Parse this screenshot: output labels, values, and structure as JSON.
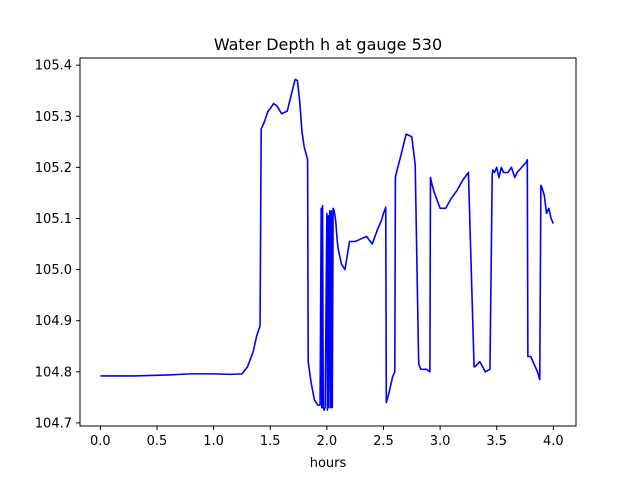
{
  "chart_data": {
    "type": "line",
    "title": "Water Depth h at gauge 530",
    "xlabel": "hours",
    "ylabel": "",
    "xlim": [
      -0.18,
      4.2
    ],
    "ylim": [
      104.694,
      105.414
    ],
    "xticks": [
      0.0,
      0.5,
      1.0,
      1.5,
      2.0,
      2.5,
      3.0,
      3.5,
      4.0
    ],
    "xtick_labels": [
      "0.0",
      "0.5",
      "1.0",
      "1.5",
      "2.0",
      "2.5",
      "3.0",
      "3.5",
      "4.0"
    ],
    "yticks": [
      104.7,
      104.8,
      104.9,
      105.0,
      105.1,
      105.2,
      105.3,
      105.4
    ],
    "ytick_labels": [
      "104.7",
      "104.8",
      "104.9",
      "105.0",
      "105.1",
      "105.2",
      "105.3",
      "105.4"
    ],
    "grid": false,
    "series_color": "#0000ff",
    "series": [
      {
        "x": [
          0.0,
          0.3,
          0.6,
          0.8,
          1.0,
          1.15,
          1.25,
          1.3,
          1.35,
          1.38,
          1.41,
          1.42,
          1.45,
          1.48,
          1.5,
          1.53,
          1.56,
          1.6,
          1.65,
          1.7,
          1.72,
          1.74,
          1.76,
          1.78,
          1.8,
          1.83,
          1.835,
          1.86,
          1.89,
          1.92,
          1.94,
          1.95,
          1.955,
          1.962,
          1.968,
          1.975,
          1.985,
          2.0,
          2.005,
          2.012,
          2.018,
          2.025,
          2.035,
          2.04,
          2.048,
          2.055,
          2.065,
          2.075,
          2.08,
          2.09,
          2.1,
          2.13,
          2.16,
          2.2,
          2.25,
          2.3,
          2.35,
          2.4,
          2.45,
          2.48,
          2.5,
          2.52,
          2.525,
          2.55,
          2.58,
          2.6,
          2.605,
          2.62,
          2.65,
          2.7,
          2.75,
          2.78,
          2.81,
          2.812,
          2.83,
          2.88,
          2.91,
          2.915,
          2.93,
          2.95,
          3.0,
          3.05,
          3.1,
          3.15,
          3.2,
          3.25,
          3.3,
          3.31,
          3.35,
          3.4,
          3.44,
          3.46,
          3.465,
          3.48,
          3.5,
          3.52,
          3.54,
          3.56,
          3.6,
          3.63,
          3.66,
          3.68,
          3.72,
          3.76,
          3.77,
          3.775,
          3.8,
          3.83,
          3.86,
          3.88,
          3.89,
          3.9,
          3.92,
          3.94,
          3.96,
          3.98,
          4.0
        ],
        "y": [
          104.792,
          104.792,
          104.794,
          104.796,
          104.796,
          104.795,
          104.796,
          104.81,
          104.84,
          104.87,
          104.89,
          105.275,
          105.29,
          105.31,
          105.315,
          105.325,
          105.32,
          105.305,
          105.31,
          105.355,
          105.372,
          105.37,
          105.33,
          105.27,
          105.24,
          105.215,
          104.82,
          104.78,
          104.745,
          104.735,
          104.735,
          105.12,
          104.73,
          105.125,
          104.73,
          104.725,
          104.73,
          105.11,
          104.725,
          105.105,
          104.73,
          105.115,
          104.73,
          105.115,
          104.73,
          105.12,
          105.115,
          105.1,
          105.09,
          105.06,
          105.04,
          105.01,
          105.0,
          105.055,
          105.055,
          105.06,
          105.065,
          105.05,
          105.08,
          105.095,
          105.11,
          105.122,
          104.74,
          104.76,
          104.79,
          104.8,
          105.18,
          105.195,
          105.22,
          105.265,
          105.26,
          105.205,
          104.825,
          104.815,
          104.805,
          104.805,
          104.8,
          105.18,
          105.165,
          105.15,
          105.12,
          105.12,
          105.14,
          105.155,
          105.175,
          105.19,
          104.81,
          104.81,
          104.82,
          104.8,
          104.805,
          105.185,
          105.195,
          105.19,
          105.2,
          105.18,
          105.2,
          105.19,
          105.19,
          105.2,
          105.18,
          105.19,
          105.2,
          105.21,
          105.215,
          104.83,
          104.83,
          104.815,
          104.8,
          104.785,
          105.165,
          105.16,
          105.145,
          105.11,
          105.12,
          105.1,
          105.09
        ]
      }
    ]
  }
}
